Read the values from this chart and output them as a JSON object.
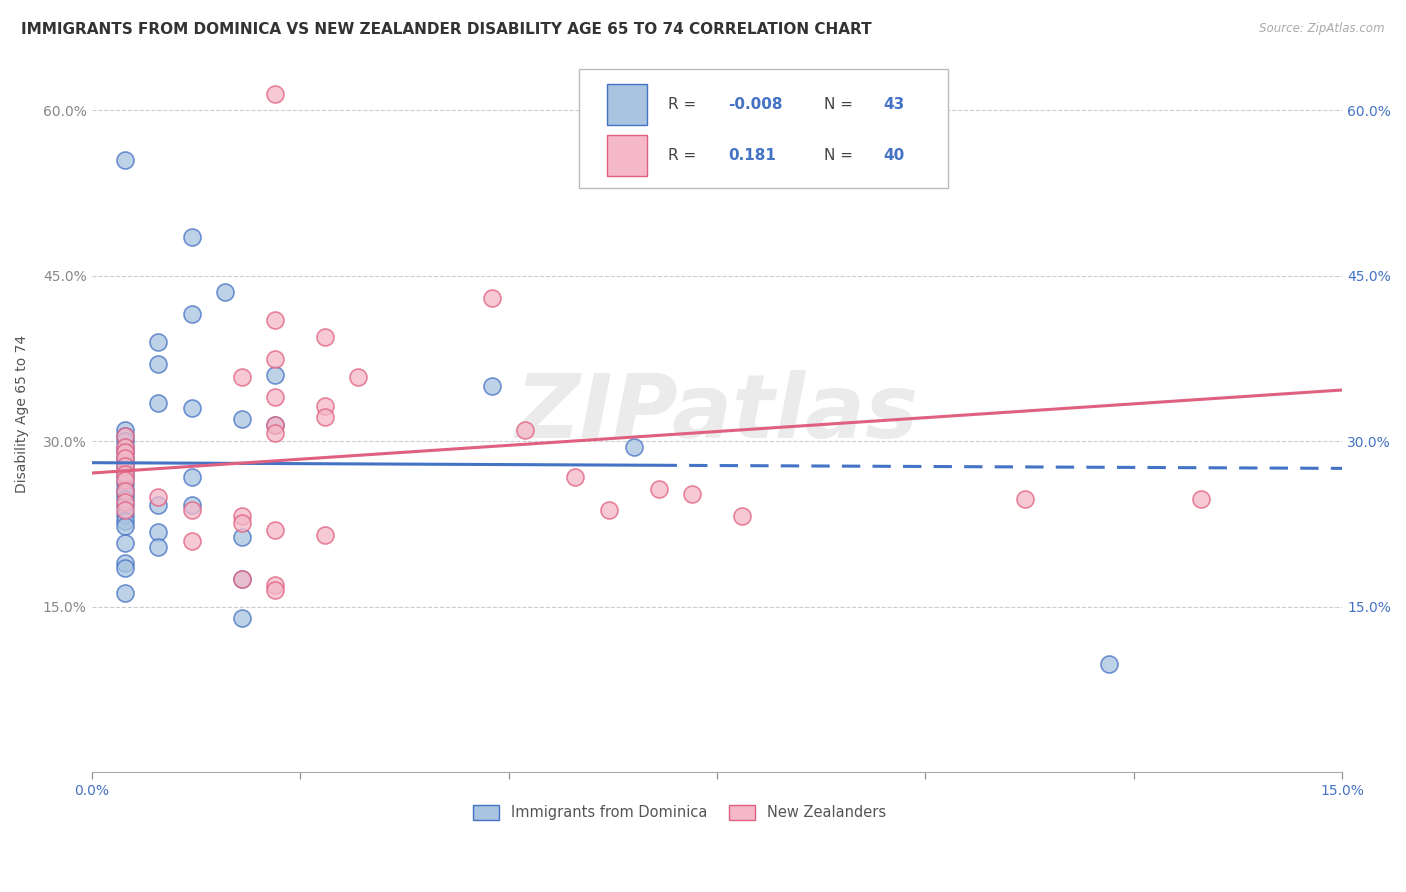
{
  "title": "IMMIGRANTS FROM DOMINICA VS NEW ZEALANDER DISABILITY AGE 65 TO 74 CORRELATION CHART",
  "source": "Source: ZipAtlas.com",
  "ylabel": "Disability Age 65 to 74",
  "xlim": [
    0,
    0.15
  ],
  "ylim": [
    0,
    0.65
  ],
  "xticks": [
    0.0,
    0.025,
    0.05,
    0.075,
    0.1,
    0.125,
    0.15
  ],
  "yticks": [
    0.0,
    0.15,
    0.3,
    0.45,
    0.6
  ],
  "ytick_labels_left": [
    "",
    "15.0%",
    "30.0%",
    "45.0%",
    "60.0%"
  ],
  "ytick_labels_right": [
    "15.0%",
    "30.0%",
    "45.0%",
    "60.0%"
  ],
  "yticks_right": [
    0.15,
    0.3,
    0.45,
    0.6
  ],
  "blue_R": -0.008,
  "blue_N": 43,
  "pink_R": 0.181,
  "pink_N": 40,
  "blue_color": "#a8c4e0",
  "pink_color": "#f4b8c8",
  "blue_edge_color": "#4472c4",
  "pink_edge_color": "#e06080",
  "blue_line_color": "#4472c4",
  "pink_line_color": "#e06080",
  "blue_scatter": [
    [
      0.004,
      0.555
    ],
    [
      0.012,
      0.485
    ],
    [
      0.016,
      0.435
    ],
    [
      0.012,
      0.415
    ],
    [
      0.008,
      0.39
    ],
    [
      0.008,
      0.37
    ],
    [
      0.022,
      0.36
    ],
    [
      0.048,
      0.35
    ],
    [
      0.008,
      0.335
    ],
    [
      0.012,
      0.33
    ],
    [
      0.018,
      0.32
    ],
    [
      0.022,
      0.315
    ],
    [
      0.004,
      0.31
    ],
    [
      0.004,
      0.305
    ],
    [
      0.004,
      0.3
    ],
    [
      0.004,
      0.295
    ],
    [
      0.004,
      0.29
    ],
    [
      0.004,
      0.285
    ],
    [
      0.004,
      0.278
    ],
    [
      0.004,
      0.272
    ],
    [
      0.004,
      0.268
    ],
    [
      0.012,
      0.268
    ],
    [
      0.004,
      0.262
    ],
    [
      0.004,
      0.257
    ],
    [
      0.004,
      0.252
    ],
    [
      0.004,
      0.248
    ],
    [
      0.004,
      0.242
    ],
    [
      0.008,
      0.242
    ],
    [
      0.012,
      0.242
    ],
    [
      0.004,
      0.233
    ],
    [
      0.004,
      0.228
    ],
    [
      0.004,
      0.223
    ],
    [
      0.008,
      0.218
    ],
    [
      0.018,
      0.213
    ],
    [
      0.004,
      0.208
    ],
    [
      0.008,
      0.204
    ],
    [
      0.004,
      0.19
    ],
    [
      0.004,
      0.185
    ],
    [
      0.018,
      0.175
    ],
    [
      0.004,
      0.163
    ],
    [
      0.018,
      0.14
    ],
    [
      0.065,
      0.295
    ],
    [
      0.122,
      0.098
    ]
  ],
  "pink_scatter": [
    [
      0.022,
      0.615
    ],
    [
      0.048,
      0.43
    ],
    [
      0.022,
      0.41
    ],
    [
      0.028,
      0.395
    ],
    [
      0.022,
      0.375
    ],
    [
      0.018,
      0.358
    ],
    [
      0.032,
      0.358
    ],
    [
      0.022,
      0.34
    ],
    [
      0.028,
      0.332
    ],
    [
      0.028,
      0.322
    ],
    [
      0.022,
      0.315
    ],
    [
      0.022,
      0.308
    ],
    [
      0.004,
      0.305
    ],
    [
      0.004,
      0.295
    ],
    [
      0.004,
      0.29
    ],
    [
      0.004,
      0.285
    ],
    [
      0.004,
      0.278
    ],
    [
      0.004,
      0.27
    ],
    [
      0.004,
      0.265
    ],
    [
      0.004,
      0.255
    ],
    [
      0.008,
      0.25
    ],
    [
      0.004,
      0.245
    ],
    [
      0.004,
      0.238
    ],
    [
      0.012,
      0.238
    ],
    [
      0.018,
      0.232
    ],
    [
      0.018,
      0.226
    ],
    [
      0.022,
      0.22
    ],
    [
      0.028,
      0.215
    ],
    [
      0.012,
      0.21
    ],
    [
      0.018,
      0.175
    ],
    [
      0.022,
      0.17
    ],
    [
      0.022,
      0.165
    ],
    [
      0.052,
      0.31
    ],
    [
      0.058,
      0.268
    ],
    [
      0.068,
      0.257
    ],
    [
      0.072,
      0.252
    ],
    [
      0.062,
      0.238
    ],
    [
      0.078,
      0.232
    ],
    [
      0.112,
      0.248
    ],
    [
      0.133,
      0.248
    ]
  ],
  "watermark": "ZIPatlas",
  "legend_label_blue": "Immigrants from Dominica",
  "legend_label_pink": "New Zealanders",
  "title_fontsize": 11,
  "axis_label_fontsize": 10,
  "tick_fontsize": 10
}
